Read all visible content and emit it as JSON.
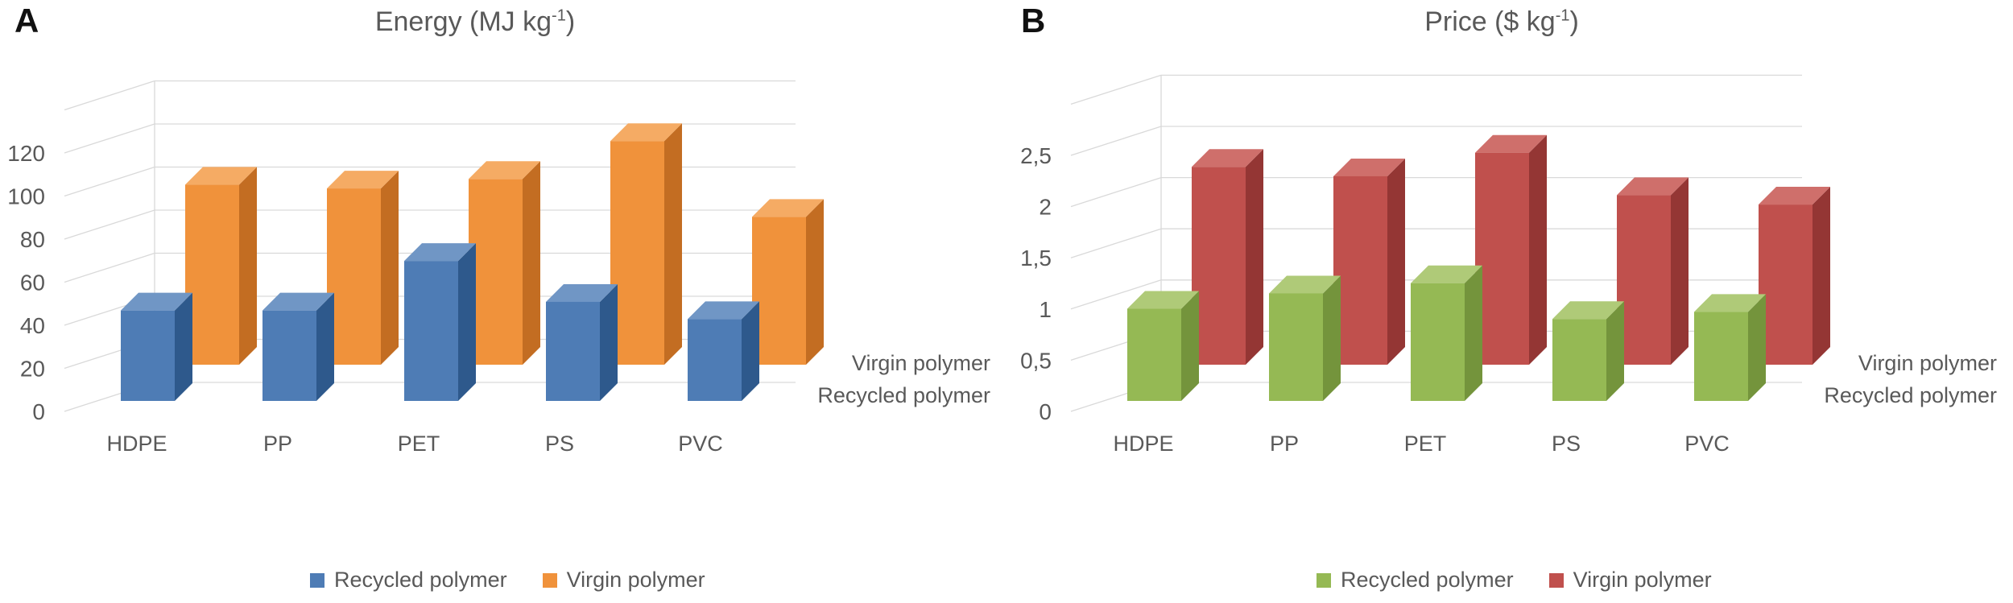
{
  "colors": {
    "background": "#FFFFFF",
    "grid": "#D9D9D9",
    "text": "#595959",
    "panel_letter": "#111111"
  },
  "panels": [
    {
      "letter": "A",
      "title": {
        "main": "Energy (MJ kg",
        "sup": "-1",
        "end": ")"
      },
      "series_axis": {
        "back": "Virgin polymer",
        "front": "Recycled polymer"
      },
      "legend": [
        {
          "label": "Recycled polymer",
          "color": "#4E7CB5"
        },
        {
          "label": "Virgin polymer",
          "color": "#F0923B"
        }
      ]
    },
    {
      "letter": "B",
      "title": {
        "main": "Price ($ kg",
        "sup": "-1",
        "end": ")"
      },
      "series_axis": {
        "back": "Virgin polymer",
        "front": "Recycled polymer"
      },
      "legend": [
        {
          "label": "Recycled polymer",
          "color": "#95B954"
        },
        {
          "label": "Virgin polymer",
          "color": "#C0504D"
        }
      ]
    }
  ],
  "chart_data": [
    {
      "type": "bar",
      "projection": "3d-column",
      "panel": "A",
      "title": "Energy (MJ kg⁻¹)",
      "categories": [
        "HDPE",
        "PP",
        "PET",
        "PS",
        "PVC"
      ],
      "series": [
        {
          "name": "Recycled polymer",
          "values": [
            42,
            42,
            65,
            46,
            38
          ],
          "color": "#4E7CB5",
          "color_top": "#7096C5",
          "color_side": "#2E598C"
        },
        {
          "name": "Virgin polymer",
          "values": [
            95,
            93,
            98,
            118,
            78
          ],
          "color": "#F0923B",
          "color_top": "#F5AB64",
          "color_side": "#C36D22"
        }
      ],
      "xlabel": "",
      "ylabel": "Energy (MJ kg⁻¹)",
      "y_ticks": [
        0,
        20,
        40,
        60,
        80,
        100,
        120
      ],
      "tick_labels": [
        "0",
        "20",
        "40",
        "60",
        "80",
        "100",
        "120"
      ],
      "ylim": [
        0,
        140
      ],
      "grid": true,
      "legend_position": "bottom",
      "depth_axis_labels": [
        "Recycled polymer",
        "Virgin polymer"
      ]
    },
    {
      "type": "bar",
      "projection": "3d-column",
      "panel": "B",
      "title": "Price ($ kg⁻¹)",
      "categories": [
        "HDPE",
        "PP",
        "PET",
        "PS",
        "PVC"
      ],
      "series": [
        {
          "name": "Recycled polymer",
          "values": [
            0.9,
            1.05,
            1.15,
            0.8,
            0.87
          ],
          "color": "#95B954",
          "color_top": "#AFCA78",
          "color_side": "#74943C"
        },
        {
          "name": "Virgin polymer",
          "values": [
            2.1,
            2.0,
            2.25,
            1.8,
            1.7
          ],
          "color": "#C0504D",
          "color_top": "#CF6F6B",
          "color_side": "#943634"
        }
      ],
      "xlabel": "",
      "ylabel": "Price ($ kg⁻¹)",
      "y_ticks": [
        0,
        0.5,
        1,
        1.5,
        2,
        2.5
      ],
      "tick_labels": [
        "0",
        "0,5",
        "1",
        "1,5",
        "2",
        "2,5"
      ],
      "ylim": [
        0,
        3
      ],
      "grid": true,
      "legend_position": "bottom",
      "depth_axis_labels": [
        "Recycled polymer",
        "Virgin polymer"
      ]
    }
  ]
}
